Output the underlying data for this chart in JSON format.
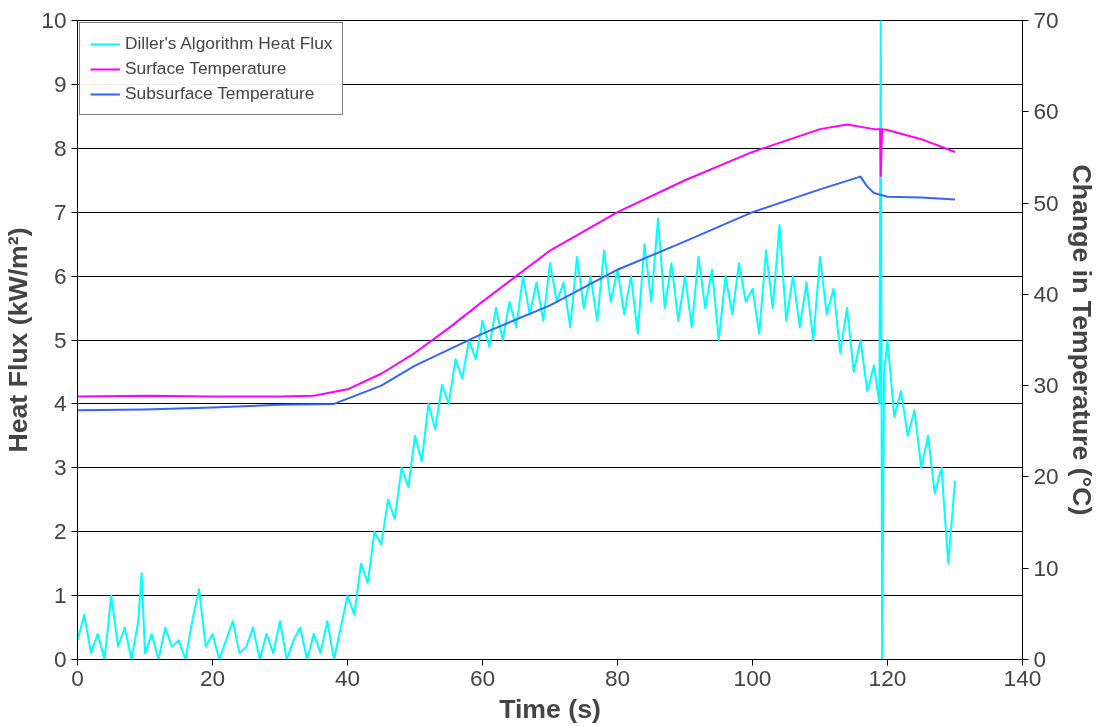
{
  "chart_data": {
    "type": "line",
    "xlabel": "Time (s)",
    "ylabel": "Heat Flux (kW/m²)",
    "y2label": "Change in Temperature (°C)",
    "xlim": [
      0,
      140
    ],
    "xticks": [
      0,
      20,
      40,
      60,
      80,
      100,
      120,
      140
    ],
    "ylim": [
      0,
      10
    ],
    "yticks": [
      0,
      1,
      2,
      3,
      4,
      5,
      6,
      7,
      8,
      9,
      10
    ],
    "y2lim": [
      0,
      70
    ],
    "y2ticks": [
      0,
      10,
      20,
      30,
      40,
      50,
      60,
      70
    ],
    "grid": "y",
    "legend": "top left",
    "marker": "none",
    "line_style": "solid",
    "series": [
      {
        "name": "Diller's Algorithm Heat Flux",
        "color": "#00ffff",
        "x": [
          0,
          1,
          2,
          3,
          4,
          5,
          6,
          7,
          8,
          9,
          9.5,
          10,
          11,
          12,
          13,
          14,
          15,
          16,
          17,
          18,
          19,
          20,
          21,
          22,
          23,
          24,
          25,
          26,
          27,
          28,
          29,
          30,
          31,
          32,
          33,
          34,
          35,
          36,
          37,
          38,
          39,
          40,
          41,
          42,
          43,
          44,
          45,
          46,
          47,
          48,
          49,
          50,
          51,
          52,
          53,
          54,
          55,
          56,
          57,
          58,
          59,
          60,
          61,
          62,
          63,
          64,
          65,
          66,
          67,
          68,
          69,
          70,
          71,
          72,
          73,
          74,
          75,
          76,
          77,
          78,
          79,
          80,
          81,
          82,
          83,
          84,
          85,
          86,
          87,
          88,
          89,
          90,
          91,
          92,
          93,
          94,
          95,
          96,
          97,
          98,
          99,
          100,
          101,
          102,
          103,
          104,
          105,
          106,
          107,
          108,
          109,
          110,
          111,
          112,
          113,
          114,
          115,
          116,
          117,
          118,
          118.8,
          119,
          119.2,
          119.5,
          120,
          121,
          122,
          123,
          124,
          125,
          126,
          127,
          128,
          129,
          130
        ],
        "values": [
          0.3,
          0.7,
          0.1,
          0.4,
          0.0,
          1.0,
          0.2,
          0.5,
          0.0,
          0.6,
          1.35,
          0.1,
          0.4,
          0.0,
          0.5,
          0.2,
          0.3,
          0.0,
          0.6,
          1.1,
          0.2,
          0.4,
          0.0,
          0.3,
          0.6,
          0.1,
          0.2,
          0.5,
          0.0,
          0.4,
          0.1,
          0.6,
          0.0,
          0.3,
          0.5,
          0.0,
          0.4,
          0.1,
          0.6,
          0.0,
          0.5,
          1.0,
          0.7,
          1.5,
          1.2,
          2.0,
          1.8,
          2.5,
          2.2,
          3.0,
          2.7,
          3.5,
          3.1,
          4.0,
          3.6,
          4.3,
          4.0,
          4.7,
          4.4,
          5.0,
          4.7,
          5.3,
          4.9,
          5.5,
          5.0,
          5.6,
          5.2,
          6.0,
          5.4,
          5.9,
          5.3,
          6.2,
          5.6,
          5.9,
          5.2,
          6.3,
          5.5,
          6.0,
          5.3,
          6.4,
          5.6,
          6.1,
          5.4,
          6.0,
          5.1,
          6.5,
          5.6,
          6.9,
          5.5,
          6.2,
          5.3,
          6.0,
          5.2,
          6.3,
          5.5,
          6.1,
          5.0,
          6.0,
          5.4,
          6.2,
          5.6,
          5.8,
          5.1,
          6.4,
          5.5,
          6.8,
          5.3,
          6.0,
          5.2,
          5.9,
          5.0,
          6.3,
          5.4,
          5.8,
          4.8,
          5.5,
          4.5,
          5.0,
          4.2,
          4.6,
          4.0,
          10.0,
          0.0,
          4.5,
          5.0,
          3.8,
          4.2,
          3.5,
          3.9,
          3.0,
          3.5,
          2.6,
          3.0,
          1.5,
          2.8
        ]
      },
      {
        "name": "Surface Temperature",
        "color": "#ff00ff",
        "axis": "y2",
        "x": [
          0,
          10,
          20,
          30,
          35,
          40,
          45,
          50,
          55,
          60,
          65,
          70,
          80,
          90,
          100,
          110,
          114,
          118,
          118.9,
          119,
          119.2,
          120,
          125,
          130
        ],
        "values": [
          28.8,
          28.9,
          28.8,
          28.8,
          28.9,
          29.6,
          31.3,
          33.6,
          36.3,
          39.2,
          42.0,
          44.8,
          49.0,
          52.5,
          55.6,
          58.1,
          58.6,
          58.1,
          58.1,
          53.0,
          58.1,
          58.0,
          57.0,
          55.6
        ]
      },
      {
        "name": "Subsurface Temperature",
        "color": "#3366ff",
        "axis": "y2",
        "x": [
          0,
          10,
          20,
          30,
          38,
          45,
          50,
          60,
          70,
          80,
          90,
          100,
          110,
          116,
          117,
          118,
          120,
          125,
          130
        ],
        "values": [
          27.3,
          27.4,
          27.6,
          27.9,
          28.0,
          30.0,
          32.2,
          35.7,
          38.8,
          42.7,
          45.8,
          49.0,
          51.5,
          52.9,
          51.8,
          51.1,
          50.7,
          50.6,
          50.4
        ]
      }
    ]
  }
}
